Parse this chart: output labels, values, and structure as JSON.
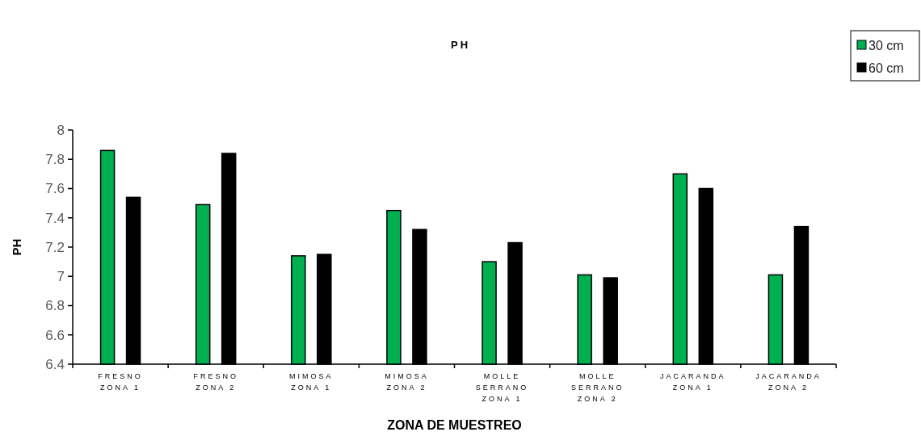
{
  "chart_data": {
    "type": "bar",
    "title": "PH",
    "xlabel": "ZONA DE MUESTREO",
    "ylabel": "PH",
    "categories": [
      "FRESNO ZONA 1",
      "FRESNO ZONA 2",
      "MIMOSA ZONA 1",
      "MIMOSA ZONA 2",
      "MOLLE SERRANO ZONA 1",
      "MOLLE SERRANO ZONA 2",
      "JACARANDA ZONA 1",
      "JACARANDA ZONA 2"
    ],
    "series": [
      {
        "name": "30 cm",
        "color": "#00b050",
        "values": [
          7.86,
          7.49,
          7.14,
          7.45,
          7.1,
          7.01,
          7.7,
          7.01
        ]
      },
      {
        "name": "60 cm",
        "color": "#000000",
        "values": [
          7.54,
          7.84,
          7.15,
          7.32,
          7.23,
          6.99,
          7.6,
          7.34
        ]
      }
    ],
    "ylim": [
      6.4,
      8
    ],
    "yticks": [
      6.4,
      6.6,
      6.8,
      7,
      7.2,
      7.4,
      7.6,
      7.8,
      8
    ],
    "legend": "top right"
  }
}
